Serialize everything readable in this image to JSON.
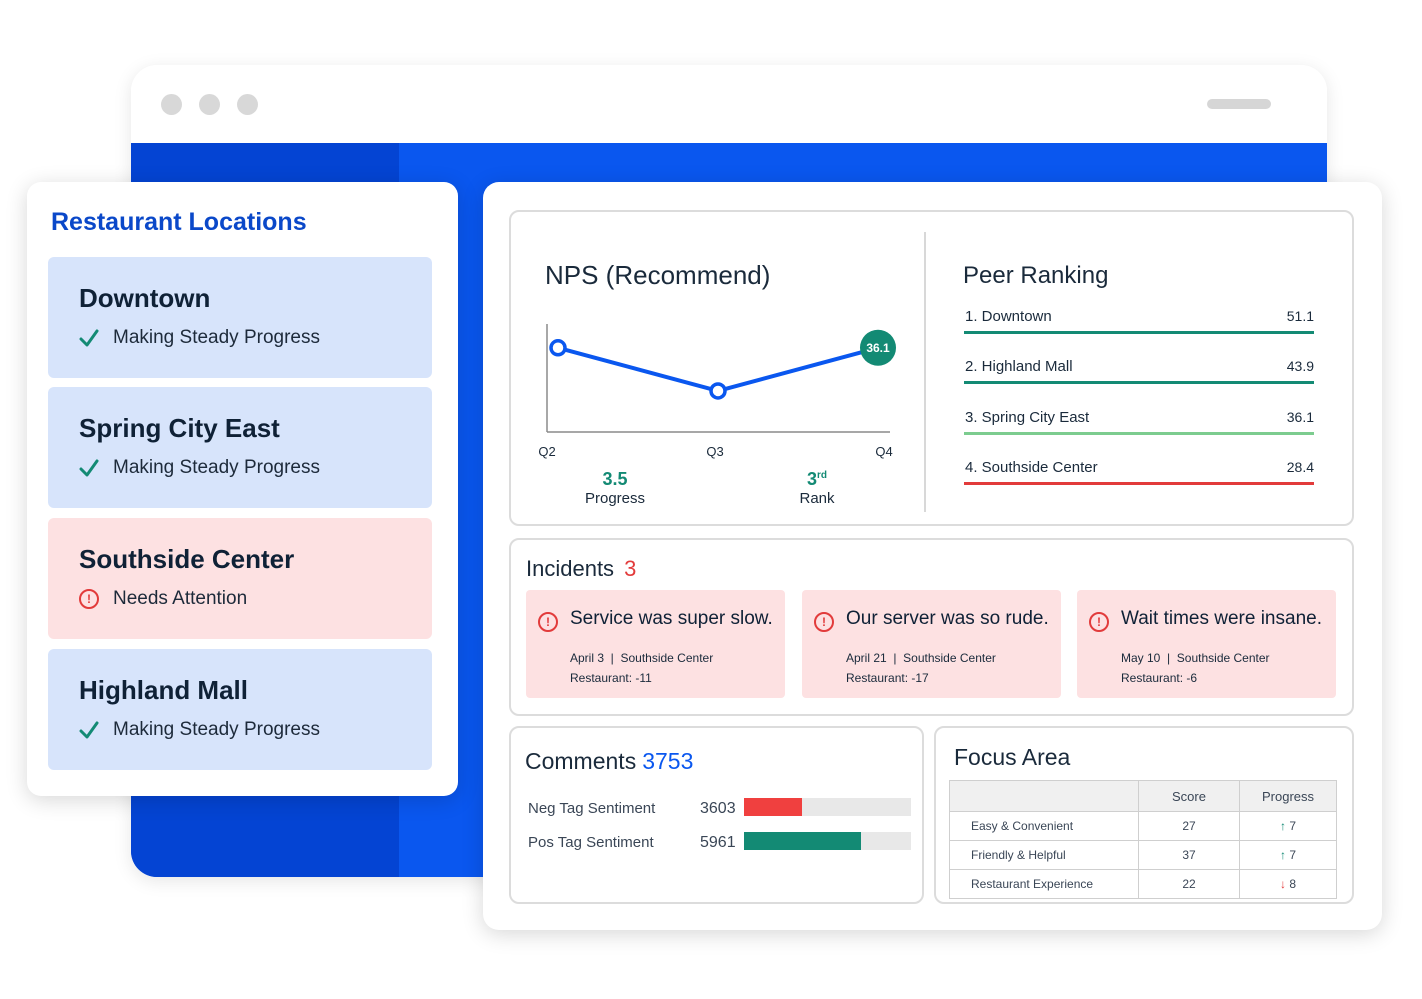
{
  "locations": {
    "title": "Restaurant Locations",
    "items": [
      {
        "name": "Downtown",
        "status": "Making Steady Progress",
        "state": "ok"
      },
      {
        "name": "Spring City East",
        "status": "Making Steady Progress",
        "state": "ok"
      },
      {
        "name": "Southside Center",
        "status": "Needs Attention",
        "state": "attention"
      },
      {
        "name": "Highland Mall",
        "status": "Making Steady Progress",
        "state": "ok"
      }
    ]
  },
  "nps": {
    "title": "NPS (Recommend)",
    "progress_value": "3.5",
    "progress_label": "Progress",
    "rank_value": "3",
    "rank_suffix": "rd",
    "rank_label": "Rank"
  },
  "chart_data": {
    "type": "line",
    "categories": [
      "Q2",
      "Q3",
      "Q4"
    ],
    "series": [
      {
        "values": [
          null,
          null,
          36.1
        ]
      }
    ],
    "point_labels": [
      "",
      "",
      "36.1"
    ],
    "relative_shape": [
      0.78,
      0.38,
      0.78
    ]
  },
  "peer_ranking": {
    "title": "Peer Ranking",
    "rows": [
      {
        "name": "1. Downtown",
        "score": "51.1",
        "color": "#138a74"
      },
      {
        "name": "2. Highland Mall",
        "score": "43.9",
        "color": "#138a74"
      },
      {
        "name": "3. Spring City East",
        "score": "36.1",
        "color": "#7ccc8f"
      },
      {
        "name": "4. Southside Center",
        "score": "28.4",
        "color": "#e23b3b"
      }
    ]
  },
  "incidents": {
    "title": "Incidents",
    "count": "3",
    "items": [
      {
        "text": "Service was super slow.",
        "meta": "April 3  |  Southside Center",
        "score": "Restaurant: -11"
      },
      {
        "text": "Our server was so rude.",
        "meta": "April 21  |  Southside Center",
        "score": "Restaurant: -17"
      },
      {
        "text": "Wait times were insane.",
        "meta": "May 10  |  Southside Center",
        "score": "Restaurant: -6"
      }
    ]
  },
  "comments": {
    "title": "Comments",
    "count": "3753",
    "rows": [
      {
        "label": "Neg Tag Sentiment",
        "value": "3603",
        "fill": 0.35,
        "color": "#f0403f"
      },
      {
        "label": "Pos Tag Sentiment",
        "value": "5961",
        "fill": 0.7,
        "color": "#138a74"
      }
    ]
  },
  "focus_area": {
    "title": "Focus Area",
    "headers": [
      "",
      "Score",
      "Progress"
    ],
    "rows": [
      {
        "area": "Easy & Convenient",
        "score": "27",
        "progress": "7",
        "direction": "up"
      },
      {
        "area": "Friendly & Helpful",
        "score": "37",
        "progress": "7",
        "direction": "up"
      },
      {
        "area": "Restaurant Experience",
        "score": "22",
        "progress": "8",
        "direction": "down"
      }
    ]
  }
}
